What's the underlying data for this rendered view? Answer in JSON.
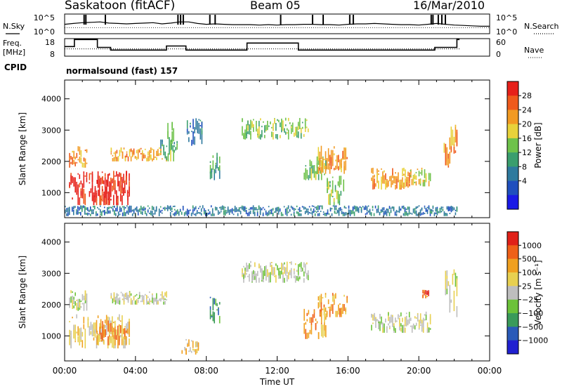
{
  "header": {
    "site": "Saskatoon (fitACF)",
    "beam": "Beam 05",
    "date": "16/Mar/2010"
  },
  "labels": {
    "nsky": "N.Sky",
    "nsearch": "N.Search",
    "freq": "Freq.",
    "freq_unit": "[MHz]",
    "nave": "Nave",
    "cpid": "CPID",
    "cpid_value": "normalsound (fast) 157",
    "ylabel": "Slant Range [km]",
    "xlabel": "Time UT",
    "power_label": "Power [dB]",
    "velocity_label": "Velocity [m s⁻¹]"
  },
  "noise_axis": {
    "left_ticks": [
      "10^5",
      "10^0"
    ],
    "right_ticks": [
      "10^5",
      "10^0"
    ]
  },
  "freq_axis": {
    "left_ticks": [
      "18",
      "8"
    ],
    "right_ticks": [
      "60",
      "0"
    ]
  },
  "colors": {
    "power": [
      "#1a1ae6",
      "#1f4fbe",
      "#2e7a9e",
      "#3a9e6e",
      "#6ec24a",
      "#e8d23a",
      "#f29a22",
      "#ef5a1c",
      "#e6201a"
    ],
    "velocity": [
      "#2020d0",
      "#2a5ab8",
      "#3a9a5a",
      "#6cc23a",
      "#bebebe",
      "#e8d050",
      "#f0a020",
      "#ef6018",
      "#e02018"
    ]
  },
  "chart_data": [
    {
      "type": "line",
      "name": "noise",
      "x": [
        0,
        0.5,
        1,
        1.5,
        2,
        2.5,
        3,
        3.5,
        4,
        4.5,
        5,
        5.5,
        6,
        6.5,
        7,
        7.5,
        8,
        8.5,
        9,
        9.5,
        10,
        10.5,
        11,
        11.5,
        12,
        12.5,
        13,
        13.5,
        14,
        14.5,
        15,
        15.5,
        16,
        16.5,
        17,
        17.5,
        18,
        18.5,
        19,
        19.5,
        20,
        20.5,
        21,
        21.5,
        22,
        22.5,
        23,
        23.5,
        24
      ],
      "series": [
        {
          "name": "N.Sky",
          "values": [
            2.4,
            2.6,
            2.8,
            2.9,
            3,
            2.7,
            2.6,
            2.5,
            2.6,
            2.7,
            2.8,
            2.5,
            2.7,
            3,
            3,
            2.6,
            2.4,
            2.5,
            2.4,
            2.3,
            2.3,
            2.3,
            2.2,
            2.3,
            2.2,
            2.3,
            2.3,
            2.4,
            2.4,
            2.3,
            2.3,
            2.2,
            2.4,
            2.5,
            2.5,
            2.6,
            2.5,
            2.4,
            2.3,
            2.3,
            2.2,
            2.4,
            2.6,
            2.4,
            2.2,
            2.1,
            2,
            1.9,
            1.9
          ]
        },
        {
          "name": "N.Search",
          "values": [
            1.5,
            1.5,
            1.5,
            1.5,
            1.5,
            1.5,
            1.5,
            1.5,
            1.5,
            1.5,
            1.5,
            1.5,
            1.5,
            1.5,
            1.5,
            1.5,
            1.5,
            1.5,
            1.5,
            1.5,
            1.5,
            1.5,
            1.5,
            1.5,
            1.5,
            1.5,
            1.5,
            1.5,
            1.5,
            1.5,
            1.5,
            1.5,
            1.5,
            1.5,
            1.5,
            1.5,
            1.5,
            1.5,
            1.5,
            1.5,
            1.5,
            1.5,
            1.5,
            1.5,
            1.5,
            1.5,
            1.5,
            1.5,
            1.5
          ]
        }
      ],
      "ylim": [
        0,
        5
      ]
    },
    {
      "type": "line",
      "name": "frequency",
      "x": [
        0,
        0.55,
        1.85,
        2.6,
        5.75,
        6.85,
        10.3,
        13.2,
        20.9,
        22.15
      ],
      "series": [
        {
          "name": "Freq.",
          "values": [
            13.5,
            17.5,
            13,
            11.5,
            13.8,
            11.5,
            15.5,
            11.5,
            13,
            17.5
          ]
        },
        {
          "name": "Nave",
          "values": [
            25,
            25,
            25,
            25,
            25,
            25,
            25,
            25,
            25,
            25
          ]
        }
      ],
      "ylim": [
        8,
        18
      ],
      "y2lim": [
        0,
        60
      ]
    },
    {
      "type": "heatmap",
      "name": "power",
      "x_ticks": [
        "00:00",
        "04:00",
        "08:00",
        "12:00",
        "16:00",
        "20:00",
        "00:00"
      ],
      "y_ticks": [
        1000,
        2000,
        3000,
        4000
      ],
      "ylim": [
        200,
        4600
      ],
      "colorbar_ticks": [
        4,
        8,
        12,
        16,
        20,
        24,
        28
      ],
      "regions": [
        {
          "t": [
            0.25,
            3.7
          ],
          "r": [
            600,
            1700
          ],
          "level": 8
        },
        {
          "t": [
            1.8,
            3.6
          ],
          "r": [
            600,
            1600
          ],
          "level": 8
        },
        {
          "t": [
            0.25,
            1.3
          ],
          "r": [
            1800,
            2500
          ],
          "level": 6
        },
        {
          "t": [
            2.6,
            5.8
          ],
          "r": [
            2000,
            2450
          ],
          "level": 6
        },
        {
          "t": [
            5.4,
            5.9
          ],
          "r": [
            2000,
            2700
          ],
          "level": 3
        },
        {
          "t": [
            6.0,
            6.4
          ],
          "r": [
            2250,
            2700
          ],
          "level": 3
        },
        {
          "t": [
            5.8,
            6.2
          ],
          "r": [
            2000,
            3400
          ],
          "level": 4
        },
        {
          "t": [
            6.9,
            7.8
          ],
          "r": [
            2500,
            3400
          ],
          "level": 2
        },
        {
          "t": [
            8.2,
            8.8
          ],
          "r": [
            1400,
            2300
          ],
          "level": 3
        },
        {
          "t": [
            10.0,
            13.8
          ],
          "r": [
            2700,
            3400
          ],
          "level": 4
        },
        {
          "t": [
            13.5,
            14.8
          ],
          "r": [
            1400,
            2200
          ],
          "level": 4
        },
        {
          "t": [
            14.3,
            16.0
          ],
          "r": [
            1600,
            2500
          ],
          "level": 6
        },
        {
          "t": [
            14.8,
            15.8
          ],
          "r": [
            600,
            1600
          ],
          "level": 4
        },
        {
          "t": [
            17.3,
            19.6
          ],
          "r": [
            1100,
            1800
          ],
          "level": 6
        },
        {
          "t": [
            19.5,
            20.7
          ],
          "r": [
            1200,
            1800
          ],
          "level": 5
        },
        {
          "t": [
            21.4,
            22.2
          ],
          "r": [
            1800,
            3200
          ],
          "level": 6
        },
        {
          "t": [
            0.0,
            22.2
          ],
          "r": [
            250,
            600
          ],
          "level": 2
        }
      ]
    },
    {
      "type": "heatmap",
      "name": "velocity",
      "x_ticks": [
        "00:00",
        "04:00",
        "08:00",
        "12:00",
        "16:00",
        "20:00",
        "00:00"
      ],
      "y_ticks": [
        1000,
        2000,
        3000,
        4000
      ],
      "ylim": [
        200,
        4600
      ],
      "colorbar_ticks": [
        "1000",
        "500",
        "100",
        "25",
        "−25",
        "−100",
        "−500",
        "−1000"
      ],
      "regions": [
        {
          "t": [
            0.25,
            3.7
          ],
          "r": [
            600,
            1700
          ],
          "level": 5
        },
        {
          "t": [
            1.8,
            3.6
          ],
          "r": [
            700,
            1500
          ],
          "level": 6
        },
        {
          "t": [
            0.25,
            1.3
          ],
          "r": [
            1800,
            2500
          ],
          "level": 4
        },
        {
          "t": [
            2.6,
            5.8
          ],
          "r": [
            2000,
            2450
          ],
          "level": 4
        },
        {
          "t": [
            6.6,
            7.6
          ],
          "r": [
            400,
            900
          ],
          "level": 5
        },
        {
          "t": [
            8.2,
            8.8
          ],
          "r": [
            1400,
            2300
          ],
          "level": 2
        },
        {
          "t": [
            10.0,
            13.8
          ],
          "r": [
            2700,
            3400
          ],
          "level": 4
        },
        {
          "t": [
            13.5,
            14.8
          ],
          "r": [
            900,
            1900
          ],
          "level": 6
        },
        {
          "t": [
            14.3,
            16.0
          ],
          "r": [
            1600,
            2400
          ],
          "level": 6
        },
        {
          "t": [
            17.3,
            20.7
          ],
          "r": [
            1100,
            1800
          ],
          "level": 4
        },
        {
          "t": [
            21.4,
            22.2
          ],
          "r": [
            1600,
            3200
          ],
          "level": 4
        },
        {
          "t": [
            20.2,
            20.6
          ],
          "r": [
            2200,
            2500
          ],
          "level": 7
        }
      ]
    }
  ]
}
